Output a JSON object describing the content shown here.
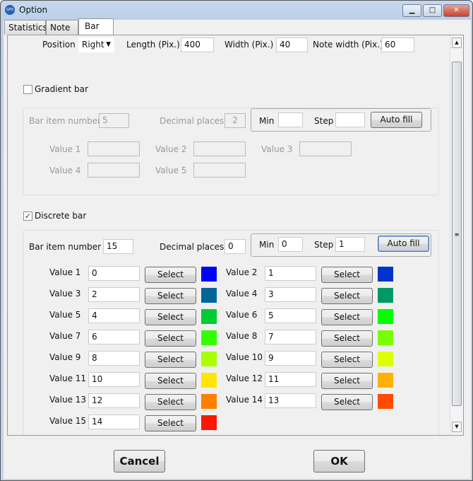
{
  "window": {
    "title": "Option",
    "app_icon": "GPS",
    "buttons": [
      "minimize",
      "maximize",
      "close"
    ]
  },
  "tabs": [
    {
      "label": "Statistics"
    },
    {
      "label": "Note"
    },
    {
      "label": "Bar",
      "active": true
    }
  ],
  "top": {
    "position_label": "Position",
    "position_value": "Right",
    "length_label": "Length (Pix.)",
    "length_value": "400",
    "width_label": "Width (Pix.)",
    "width_value": "40",
    "note_width_label": "Note width (Pix.)",
    "note_width_value": "60"
  },
  "gradient": {
    "label": "Gradient bar",
    "checked": false,
    "item_number_label": "Bar item number",
    "item_number": "5",
    "decimal_label": "Decimal places",
    "decimal": "2",
    "min_label": "Min",
    "min": "",
    "step_label": "Step",
    "step": "",
    "auto_fill": "Auto fill",
    "values": [
      {
        "label": "Value 1",
        "value": ""
      },
      {
        "label": "Value 2",
        "value": ""
      },
      {
        "label": "Value 3",
        "value": ""
      },
      {
        "label": "Value 4",
        "value": ""
      },
      {
        "label": "Value 5",
        "value": ""
      }
    ]
  },
  "discrete": {
    "label": "Discrete bar",
    "checked": true,
    "item_number_label": "Bar item number",
    "item_number": "15",
    "decimal_label": "Decimal places",
    "decimal": "0",
    "min_label": "Min",
    "min": "0",
    "step_label": "Step",
    "step": "1",
    "auto_fill": "Auto fill",
    "select_label": "Select",
    "values": [
      {
        "label": "Value 1",
        "value": "0",
        "color": "#0000ff"
      },
      {
        "label": "Value 2",
        "value": "1",
        "color": "#0033cc"
      },
      {
        "label": "Value 3",
        "value": "2",
        "color": "#006699"
      },
      {
        "label": "Value 4",
        "value": "3",
        "color": "#009966"
      },
      {
        "label": "Value 5",
        "value": "4",
        "color": "#00cc33"
      },
      {
        "label": "Value 6",
        "value": "5",
        "color": "#00ff00"
      },
      {
        "label": "Value 7",
        "value": "6",
        "color": "#33ff00"
      },
      {
        "label": "Value 8",
        "value": "7",
        "color": "#77ff00"
      },
      {
        "label": "Value 9",
        "value": "8",
        "color": "#aaff00"
      },
      {
        "label": "Value 10",
        "value": "9",
        "color": "#ddff00"
      },
      {
        "label": "Value 11",
        "value": "10",
        "color": "#ffe600"
      },
      {
        "label": "Value 12",
        "value": "11",
        "color": "#ffb000"
      },
      {
        "label": "Value 13",
        "value": "12",
        "color": "#ff7f00"
      },
      {
        "label": "Value 14",
        "value": "13",
        "color": "#ff4c00"
      },
      {
        "label": "Value 15",
        "value": "14",
        "color": "#ff1500"
      }
    ]
  },
  "footer": {
    "cancel": "Cancel",
    "ok": "OK"
  }
}
